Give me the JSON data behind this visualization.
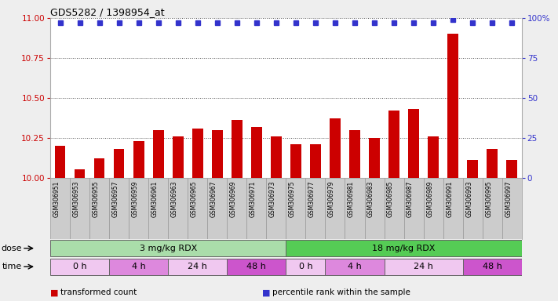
{
  "title": "GDS5282 / 1398954_at",
  "samples": [
    "GSM306951",
    "GSM306953",
    "GSM306955",
    "GSM306957",
    "GSM306959",
    "GSM306961",
    "GSM306963",
    "GSM306965",
    "GSM306967",
    "GSM306969",
    "GSM306971",
    "GSM306973",
    "GSM306975",
    "GSM306977",
    "GSM306979",
    "GSM306981",
    "GSM306983",
    "GSM306985",
    "GSM306987",
    "GSM306989",
    "GSM306991",
    "GSM306993",
    "GSM306995",
    "GSM306997"
  ],
  "transformed_count": [
    10.2,
    10.05,
    10.12,
    10.18,
    10.23,
    10.3,
    10.26,
    10.31,
    10.3,
    10.36,
    10.32,
    10.26,
    10.21,
    10.21,
    10.37,
    10.3,
    10.25,
    10.42,
    10.43,
    10.26,
    10.9,
    10.11,
    10.18,
    10.11
  ],
  "percentile_rank": [
    97,
    97,
    97,
    97,
    97,
    97,
    97,
    97,
    97,
    97,
    97,
    97,
    97,
    97,
    97,
    97,
    97,
    97,
    97,
    97,
    99,
    97,
    97,
    97
  ],
  "bar_color": "#cc0000",
  "dot_color": "#3333cc",
  "ylim_left": [
    10.0,
    11.0
  ],
  "yticks_left": [
    10.0,
    10.25,
    10.5,
    10.75,
    11.0
  ],
  "ylim_right": [
    0,
    100
  ],
  "yticks_right": [
    0,
    25,
    50,
    75,
    100
  ],
  "ylabel_left_color": "#cc0000",
  "ylabel_right_color": "#3333cc",
  "grid_color": "#555555",
  "plot_bg_color": "#ffffff",
  "label_bg_color": "#cccccc",
  "fig_bg_color": "#eeeeee",
  "dose_groups": [
    {
      "label": "3 mg/kg RDX",
      "start": 0,
      "end": 11,
      "color": "#aaddaa"
    },
    {
      "label": "18 mg/kg RDX",
      "start": 12,
      "end": 23,
      "color": "#55cc55"
    }
  ],
  "time_groups": [
    {
      "label": "0 h",
      "start": 0,
      "end": 2,
      "color": "#f0c8f0"
    },
    {
      "label": "4 h",
      "start": 3,
      "end": 5,
      "color": "#dd88dd"
    },
    {
      "label": "24 h",
      "start": 6,
      "end": 8,
      "color": "#f0c8f0"
    },
    {
      "label": "48 h",
      "start": 9,
      "end": 11,
      "color": "#cc55cc"
    },
    {
      "label": "0 h",
      "start": 12,
      "end": 13,
      "color": "#f0c8f0"
    },
    {
      "label": "4 h",
      "start": 14,
      "end": 16,
      "color": "#dd88dd"
    },
    {
      "label": "24 h",
      "start": 17,
      "end": 20,
      "color": "#f0c8f0"
    },
    {
      "label": "48 h",
      "start": 21,
      "end": 23,
      "color": "#cc55cc"
    }
  ],
  "legend_items": [
    {
      "label": "transformed count",
      "color": "#cc0000"
    },
    {
      "label": "percentile rank within the sample",
      "color": "#3333cc"
    }
  ],
  "dose_label": "dose",
  "time_label": "time"
}
